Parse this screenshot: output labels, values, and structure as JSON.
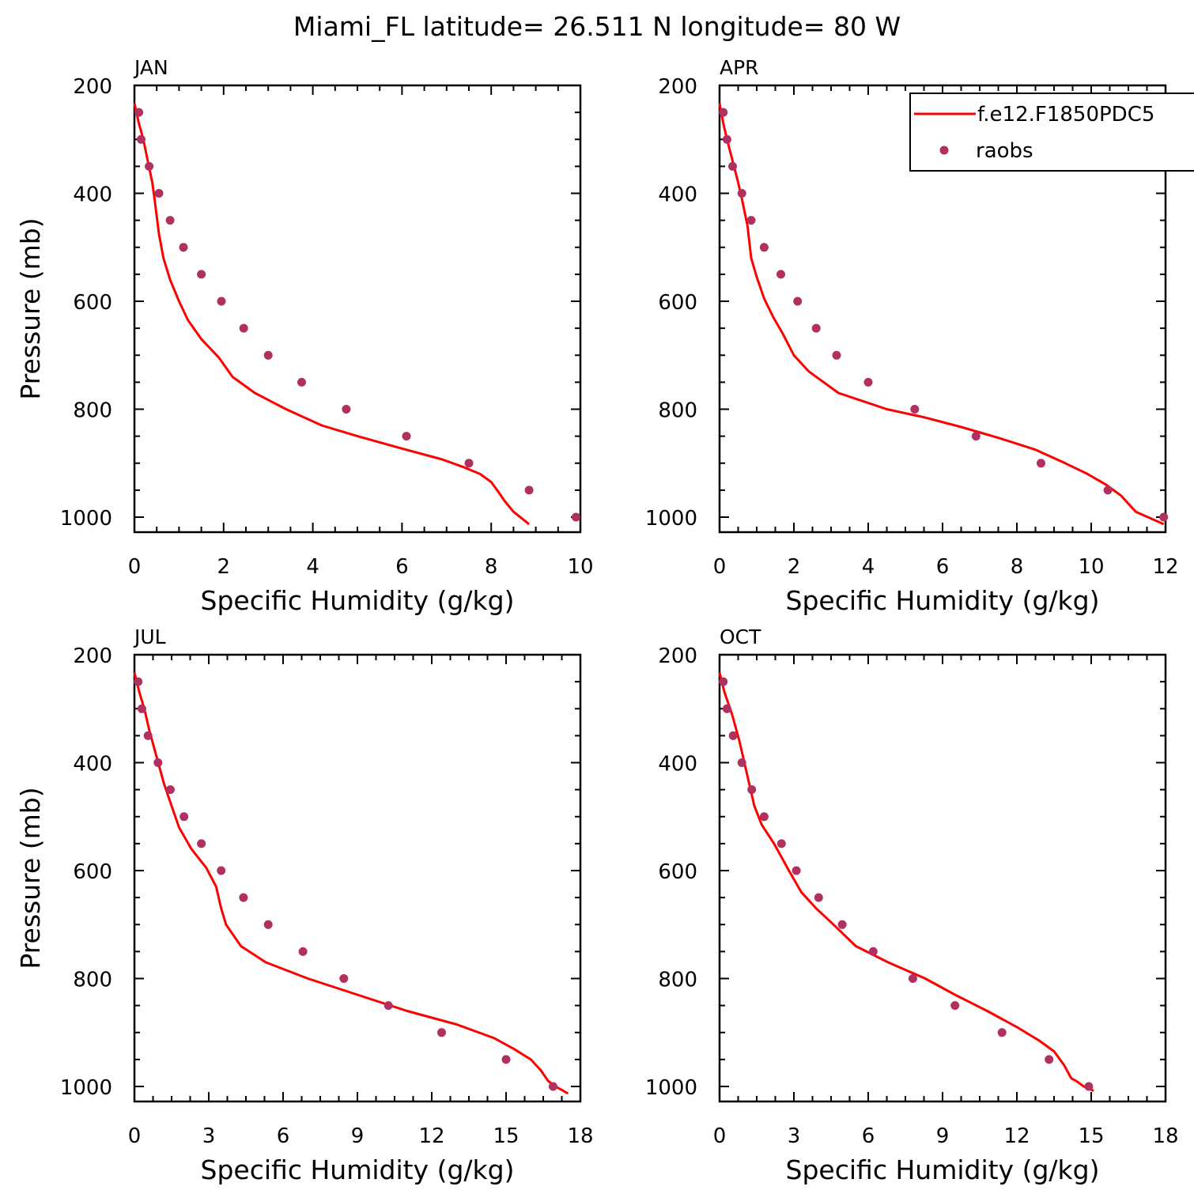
{
  "title": "Miami_FL  latitude= 26.511 N longitude= 80 W",
  "legend": {
    "model_label": "f.e12.F1850PDC5",
    "obs_label": "raobs",
    "model_color": "#ff0000",
    "obs_color": "#b03060"
  },
  "chart_data": [
    {
      "type": "scatter",
      "panel": "JAN",
      "xlabel": "Specific Humidity (g/kg)",
      "ylabel": "Pressure (mb)",
      "xlim": [
        0,
        10
      ],
      "ylim": [
        1025,
        200
      ],
      "xticks": [
        0,
        2,
        4,
        6,
        8,
        10
      ],
      "yticks": [
        200,
        400,
        600,
        800,
        1000
      ],
      "series": [
        {
          "name": "f.e12.F1850PDC5",
          "kind": "line",
          "x": [
            0.0,
            0.1,
            0.2,
            0.3,
            0.4,
            0.45,
            0.55,
            0.65,
            0.8,
            1.0,
            1.2,
            1.5,
            1.9,
            2.2,
            2.7,
            3.4,
            4.2,
            5.0,
            6.0,
            6.9,
            7.4,
            7.75,
            8.0,
            8.15,
            8.3,
            8.5,
            8.85
          ],
          "y": [
            233,
            270,
            300,
            340,
            380,
            410,
            475,
            520,
            560,
            600,
            635,
            670,
            705,
            740,
            770,
            800,
            830,
            850,
            873,
            893,
            908,
            920,
            935,
            952,
            970,
            990,
            1013
          ]
        },
        {
          "name": "raobs",
          "kind": "points",
          "x": [
            0.1,
            0.15,
            0.33,
            0.55,
            0.8,
            1.1,
            1.5,
            1.95,
            2.45,
            3.0,
            3.75,
            4.75,
            6.1,
            7.5,
            8.85,
            9.9
          ],
          "y": [
            250,
            300,
            350,
            400,
            450,
            500,
            550,
            600,
            650,
            700,
            750,
            800,
            850,
            900,
            950,
            1000
          ]
        }
      ]
    },
    {
      "type": "scatter",
      "panel": "APR",
      "xlabel": "Specific Humidity (g/kg)",
      "ylabel": "",
      "xlim": [
        0,
        12
      ],
      "ylim": [
        1025,
        200
      ],
      "xticks": [
        0,
        2,
        4,
        6,
        8,
        10,
        12
      ],
      "yticks": [
        200,
        400,
        600,
        800,
        1000
      ],
      "series": [
        {
          "name": "f.e12.F1850PDC5",
          "kind": "line",
          "x": [
            0.0,
            0.1,
            0.2,
            0.35,
            0.5,
            0.6,
            0.75,
            0.85,
            1.0,
            1.2,
            1.45,
            1.7,
            2.0,
            2.4,
            2.6,
            3.2,
            4.5,
            5.5,
            6.5,
            7.5,
            8.5,
            9.3,
            9.9,
            10.4,
            10.8,
            11.2,
            11.95
          ],
          "y": [
            233,
            270,
            300,
            340,
            380,
            410,
            460,
            520,
            555,
            595,
            630,
            660,
            700,
            730,
            740,
            770,
            800,
            815,
            833,
            853,
            875,
            900,
            920,
            940,
            960,
            990,
            1013
          ]
        },
        {
          "name": "raobs",
          "kind": "points",
          "x": [
            0.1,
            0.2,
            0.35,
            0.6,
            0.85,
            1.2,
            1.65,
            2.1,
            2.6,
            3.15,
            4.0,
            5.25,
            6.9,
            8.65,
            10.45,
            11.95
          ],
          "y": [
            250,
            300,
            350,
            400,
            450,
            500,
            550,
            600,
            650,
            700,
            750,
            800,
            850,
            900,
            950,
            1000
          ]
        }
      ]
    },
    {
      "type": "scatter",
      "panel": "JUL",
      "xlabel": "Specific Humidity (g/kg)",
      "ylabel": "Pressure (mb)",
      "xlim": [
        0,
        18
      ],
      "ylim": [
        1025,
        200
      ],
      "xticks": [
        0,
        3,
        6,
        9,
        12,
        15,
        18
      ],
      "yticks": [
        200,
        400,
        600,
        800,
        1000
      ],
      "series": [
        {
          "name": "f.e12.F1850PDC5",
          "kind": "line",
          "x": [
            0.0,
            0.2,
            0.4,
            0.6,
            0.9,
            1.2,
            1.5,
            1.8,
            2.3,
            2.9,
            3.3,
            3.5,
            3.7,
            4.3,
            5.3,
            7.0,
            9.0,
            11.0,
            13.0,
            14.5,
            15.3,
            16.0,
            16.4,
            16.7,
            17.0,
            17.5
          ],
          "y": [
            233,
            270,
            300,
            340,
            390,
            440,
            480,
            520,
            560,
            595,
            630,
            670,
            700,
            740,
            770,
            800,
            830,
            860,
            885,
            910,
            930,
            950,
            970,
            990,
            1000,
            1013
          ]
        },
        {
          "name": "raobs",
          "kind": "points",
          "x": [
            0.15,
            0.3,
            0.55,
            0.95,
            1.45,
            2.0,
            2.7,
            3.5,
            4.4,
            5.4,
            6.8,
            8.45,
            10.25,
            12.4,
            15.0,
            16.9
          ],
          "y": [
            250,
            300,
            350,
            400,
            450,
            500,
            550,
            600,
            650,
            700,
            750,
            800,
            850,
            900,
            950,
            1000
          ]
        }
      ]
    },
    {
      "type": "scatter",
      "panel": "OCT",
      "xlabel": "Specific Humidity (g/kg)",
      "ylabel": "",
      "xlim": [
        0,
        18
      ],
      "ylim": [
        1025,
        200
      ],
      "xticks": [
        0,
        3,
        6,
        9,
        12,
        15,
        18
      ],
      "yticks": [
        200,
        400,
        600,
        800,
        1000
      ],
      "series": [
        {
          "name": "f.e12.F1850PDC5",
          "kind": "line",
          "x": [
            0.0,
            0.2,
            0.5,
            0.8,
            1.1,
            1.4,
            1.7,
            2.2,
            2.8,
            3.3,
            3.9,
            4.6,
            5.5,
            6.8,
            8.3,
            9.5,
            10.8,
            12.0,
            12.9,
            13.5,
            13.9,
            14.2,
            14.4,
            14.7,
            15.1
          ],
          "y": [
            233,
            270,
            310,
            360,
            420,
            480,
            515,
            550,
            600,
            640,
            670,
            700,
            740,
            770,
            800,
            830,
            860,
            890,
            915,
            935,
            960,
            985,
            990,
            1000,
            1008
          ]
        },
        {
          "name": "raobs",
          "kind": "points",
          "x": [
            0.15,
            0.3,
            0.55,
            0.9,
            1.3,
            1.8,
            2.5,
            3.1,
            4.0,
            4.95,
            6.2,
            7.8,
            9.5,
            11.4,
            13.3,
            14.9
          ],
          "y": [
            250,
            300,
            350,
            400,
            450,
            500,
            550,
            600,
            650,
            700,
            750,
            800,
            850,
            900,
            950,
            1000
          ]
        }
      ]
    }
  ]
}
